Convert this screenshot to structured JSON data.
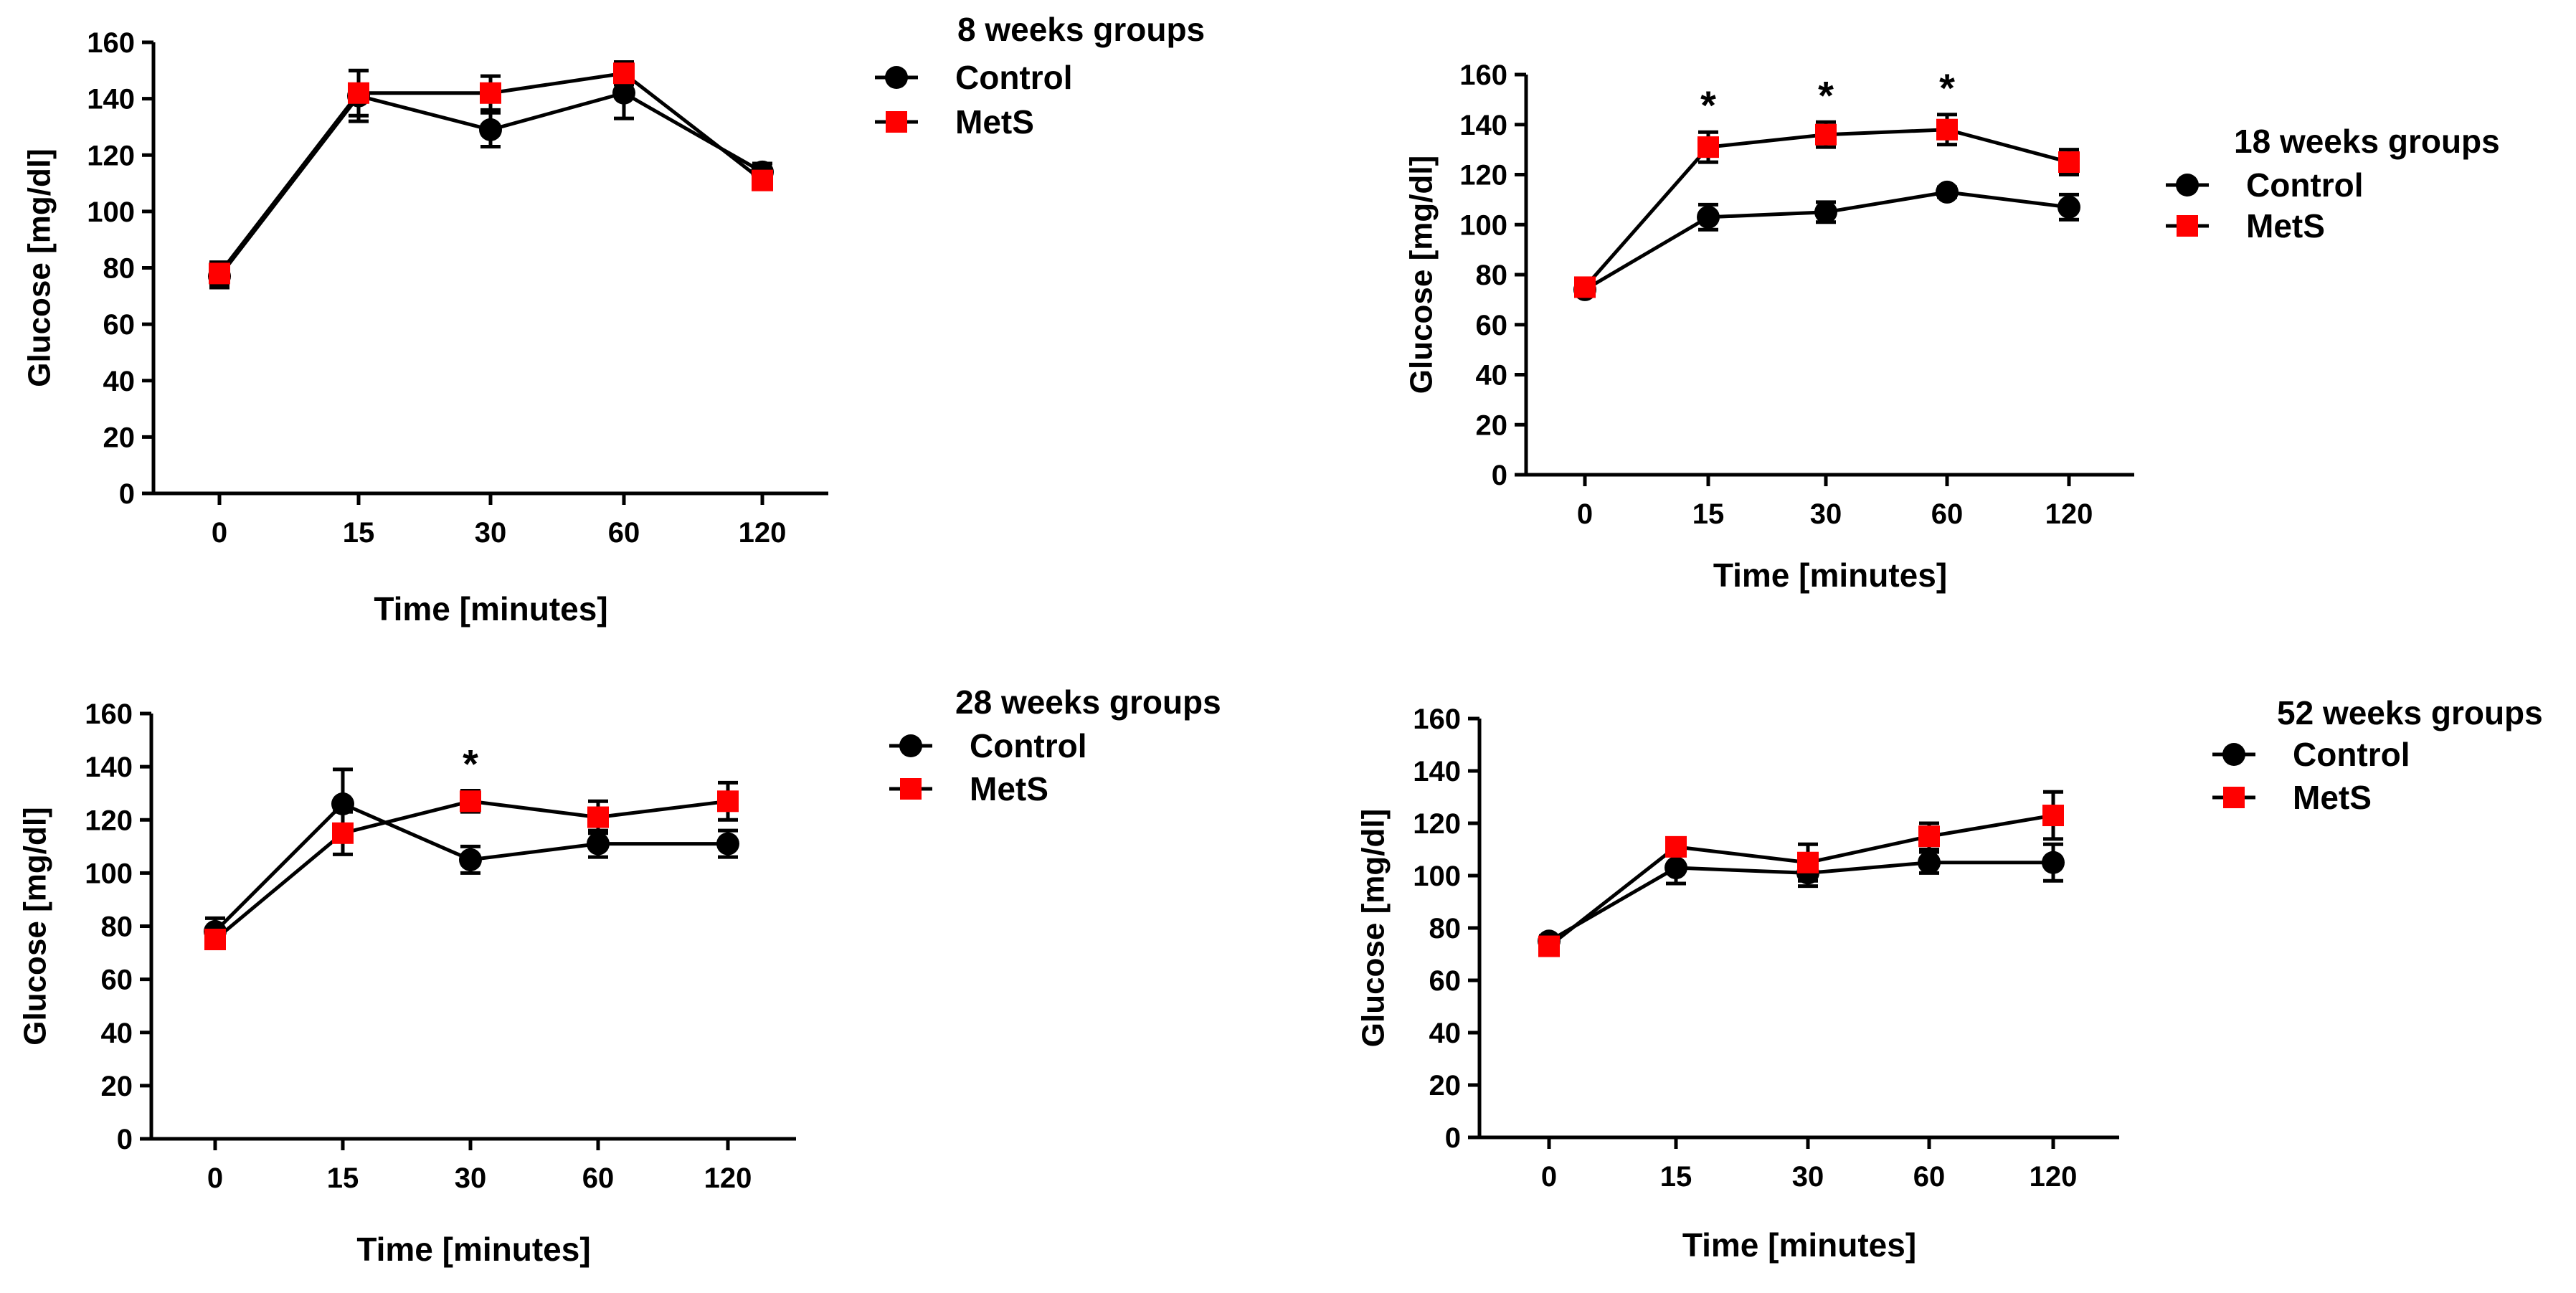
{
  "colors": {
    "control": "#000000",
    "mets": "#ff0000",
    "axis": "#000000"
  },
  "chart_data": [
    {
      "type": "line",
      "title": "8 weeks groups",
      "xlabel": "Time [minutes]",
      "ylabel": "Glucose [mg/dl]",
      "categories": [
        "0",
        "15",
        "30",
        "60",
        "120"
      ],
      "ylim": [
        0,
        160
      ],
      "yticks": [
        "0",
        "20",
        "40",
        "60",
        "80",
        "100",
        "120",
        "140",
        "160"
      ],
      "legend": "top-right",
      "series": [
        {
          "name": "Control",
          "marker": "circle",
          "values": [
            77,
            141,
            129,
            142,
            114
          ],
          "errors": [
            4,
            9,
            6,
            9,
            3
          ]
        },
        {
          "name": "MetS",
          "marker": "square",
          "values": [
            78,
            142,
            142,
            149,
            111
          ],
          "errors": [
            4,
            8,
            6,
            4,
            2
          ]
        }
      ],
      "annotations": []
    },
    {
      "type": "line",
      "title": "18 weeks groups",
      "xlabel": "Time [minutes]",
      "ylabel": "Glucose [mg/dl]",
      "categories": [
        "0",
        "15",
        "30",
        "60",
        "120"
      ],
      "ylim": [
        0,
        160
      ],
      "yticks": [
        "0",
        "20",
        "40",
        "60",
        "80",
        "100",
        "120",
        "140",
        "160"
      ],
      "legend": "right",
      "series": [
        {
          "name": "Control",
          "marker": "circle",
          "values": [
            74,
            103,
            105,
            113,
            107
          ],
          "errors": [
            2,
            5,
            4,
            2,
            5
          ]
        },
        {
          "name": "MetS",
          "marker": "square",
          "values": [
            75,
            131,
            136,
            138,
            125
          ],
          "errors": [
            2,
            6,
            5,
            6,
            5
          ]
        }
      ],
      "annotations": [
        {
          "category": "15",
          "text": "*"
        },
        {
          "category": "30",
          "text": "*"
        },
        {
          "category": "60",
          "text": "*"
        }
      ]
    },
    {
      "type": "line",
      "title": "28 weeks groups",
      "xlabel": "Time [minutes]",
      "ylabel": "Glucose [mg/dl]",
      "categories": [
        "0",
        "15",
        "30",
        "60",
        "120"
      ],
      "ylim": [
        0,
        160
      ],
      "yticks": [
        "0",
        "20",
        "40",
        "60",
        "80",
        "100",
        "120",
        "140",
        "160"
      ],
      "legend": "top-right",
      "series": [
        {
          "name": "Control",
          "marker": "circle",
          "values": [
            78,
            126,
            105,
            111,
            111
          ],
          "errors": [
            5,
            13,
            5,
            5,
            5
          ]
        },
        {
          "name": "MetS",
          "marker": "square",
          "values": [
            75,
            115,
            127,
            121,
            127
          ],
          "errors": [
            3,
            8,
            4,
            6,
            7
          ]
        }
      ],
      "annotations": [
        {
          "category": "30",
          "text": "*"
        }
      ]
    },
    {
      "type": "line",
      "title": "52 weeks groups",
      "xlabel": "Time [minutes]",
      "ylabel": "Glucose [mg/dl]",
      "categories": [
        "0",
        "15",
        "30",
        "60",
        "120"
      ],
      "ylim": [
        0,
        160
      ],
      "yticks": [
        "0",
        "20",
        "40",
        "60",
        "80",
        "100",
        "120",
        "140",
        "160"
      ],
      "legend": "top-right",
      "series": [
        {
          "name": "Control",
          "marker": "circle",
          "values": [
            75,
            103,
            101,
            105,
            105
          ],
          "errors": [
            2,
            6,
            5,
            4,
            7
          ]
        },
        {
          "name": "MetS",
          "marker": "square",
          "values": [
            73,
            111,
            105,
            115,
            123
          ],
          "errors": [
            2,
            3,
            7,
            5,
            9
          ]
        }
      ],
      "annotations": []
    }
  ]
}
